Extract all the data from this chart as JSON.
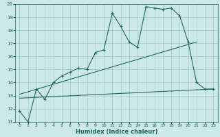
{
  "xlabel": "Humidex (Indice chaleur)",
  "xlim": [
    -0.5,
    23.5
  ],
  "ylim": [
    11,
    20
  ],
  "yticks": [
    11,
    12,
    13,
    14,
    15,
    16,
    17,
    18,
    19,
    20
  ],
  "xticks": [
    0,
    1,
    2,
    3,
    4,
    5,
    6,
    7,
    8,
    9,
    10,
    11,
    12,
    13,
    14,
    15,
    16,
    17,
    18,
    19,
    20,
    21,
    22,
    23
  ],
  "bg_color": "#cce8e8",
  "grid_color": "#aacece",
  "line_color": "#1a6b5a",
  "line_main": {
    "x": [
      0,
      1,
      2,
      3,
      4,
      5,
      6,
      7,
      8,
      9,
      10,
      11,
      12,
      13,
      14,
      15,
      16,
      17,
      18,
      19,
      20,
      21,
      22,
      23
    ],
    "y": [
      11.8,
      11.0,
      13.5,
      12.7,
      14.0,
      14.5,
      14.8,
      15.1,
      15.0,
      16.3,
      16.5,
      19.3,
      18.3,
      17.1,
      16.7,
      19.8,
      19.7,
      19.6,
      19.7,
      19.1,
      17.1,
      14.0,
      13.5,
      13.5
    ]
  },
  "line_trend1": {
    "x": [
      0,
      21
    ],
    "y": [
      13.1,
      17.1
    ]
  },
  "line_trend2": {
    "x": [
      0,
      23
    ],
    "y": [
      12.8,
      13.5
    ]
  },
  "line_envelope": {
    "x": [
      2,
      3,
      4,
      5,
      6,
      7,
      8,
      9,
      10,
      11,
      12,
      13,
      14,
      15,
      16,
      17,
      18,
      19,
      20,
      21,
      22,
      23
    ],
    "y": [
      13.5,
      12.7,
      14.0,
      14.5,
      14.8,
      15.1,
      15.0,
      16.3,
      16.5,
      19.3,
      18.3,
      17.1,
      16.7,
      19.8,
      19.7,
      19.6,
      19.7,
      19.1,
      17.1,
      14.0,
      13.5,
      13.5
    ]
  }
}
